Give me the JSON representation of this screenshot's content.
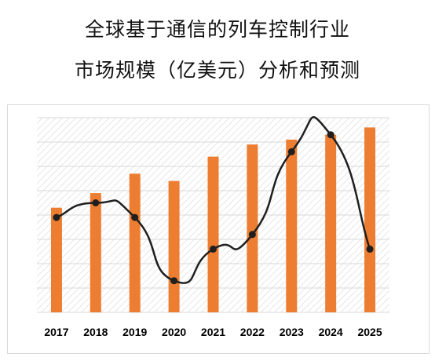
{
  "title": {
    "line1": "全球基于通信的列车控制行业",
    "line2": "市场规模（亿美元）分析和预测"
  },
  "colors": {
    "bar": "#ED7D31",
    "line": "#1f1f1f",
    "marker": "#1f1f1f",
    "grid": "#d9d9d9",
    "plot_hatch": "#e6e6e6"
  },
  "chart_data": {
    "type": "bar",
    "categories": [
      "2017",
      "2018",
      "2019",
      "2020",
      "2021",
      "2022",
      "2023",
      "2024",
      "2025"
    ],
    "series": [
      {
        "type": "bar",
        "values": [
          43,
          49,
          57,
          54,
          64,
          69,
          71,
          73,
          76
        ]
      },
      {
        "type": "line",
        "smooth": true,
        "values": [
          39,
          45,
          39,
          13,
          26,
          32,
          66,
          73,
          26
        ]
      }
    ],
    "ylim": [
      0,
      80
    ],
    "grid": true,
    "legend": "none",
    "xlabel": "",
    "ylabel": ""
  }
}
